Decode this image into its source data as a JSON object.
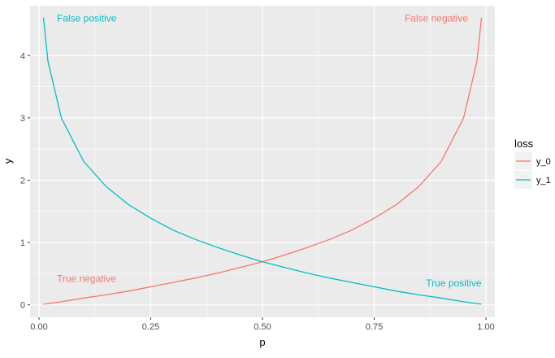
{
  "chart_data": {
    "type": "line",
    "title": "",
    "xlabel": "p",
    "ylabel": "y",
    "xlim": [
      -0.02,
      1.02
    ],
    "ylim": [
      -0.2,
      4.8
    ],
    "x_ticks": [
      0,
      0.25,
      0.5,
      0.75,
      1.0
    ],
    "x_tick_labels": [
      "0.00",
      "0.25",
      "0.50",
      "0.75",
      "1.00"
    ],
    "y_ticks": [
      0,
      1,
      2,
      3,
      4
    ],
    "y_tick_labels": [
      "0",
      "1",
      "2",
      "3",
      "4"
    ],
    "grid": true,
    "legend": {
      "title": "loss",
      "position": "right"
    },
    "x": [
      0.01,
      0.02,
      0.05,
      0.1,
      0.15,
      0.2,
      0.25,
      0.3,
      0.35,
      0.4,
      0.45,
      0.5,
      0.55,
      0.6,
      0.65,
      0.7,
      0.75,
      0.8,
      0.85,
      0.9,
      0.95,
      0.98,
      0.99
    ],
    "series": [
      {
        "name": "y_0",
        "color": "#F8766D",
        "values": [
          0.01,
          0.02,
          0.05,
          0.11,
          0.16,
          0.22,
          0.29,
          0.36,
          0.43,
          0.51,
          0.6,
          0.69,
          0.8,
          0.92,
          1.05,
          1.2,
          1.39,
          1.61,
          1.9,
          2.3,
          3.0,
          3.91,
          4.61
        ]
      },
      {
        "name": "y_1",
        "color": "#00BFC4",
        "values": [
          4.61,
          3.91,
          3.0,
          2.3,
          1.9,
          1.61,
          1.39,
          1.2,
          1.05,
          0.92,
          0.8,
          0.69,
          0.6,
          0.51,
          0.43,
          0.36,
          0.29,
          0.22,
          0.16,
          0.11,
          0.05,
          0.02,
          0.01
        ]
      }
    ],
    "annotations": [
      {
        "text": "False positive",
        "x": 0.04,
        "y": 4.6,
        "anchor": "start",
        "color": "#00BFC4"
      },
      {
        "text": "False negative",
        "x": 0.96,
        "y": 4.6,
        "anchor": "end",
        "color": "#F8766D"
      },
      {
        "text": "True negative",
        "x": 0.04,
        "y": 0.42,
        "anchor": "start",
        "color": "#F8766D"
      },
      {
        "text": "True positive",
        "x": 0.99,
        "y": 0.35,
        "anchor": "end",
        "color": "#00BFC4"
      }
    ]
  }
}
